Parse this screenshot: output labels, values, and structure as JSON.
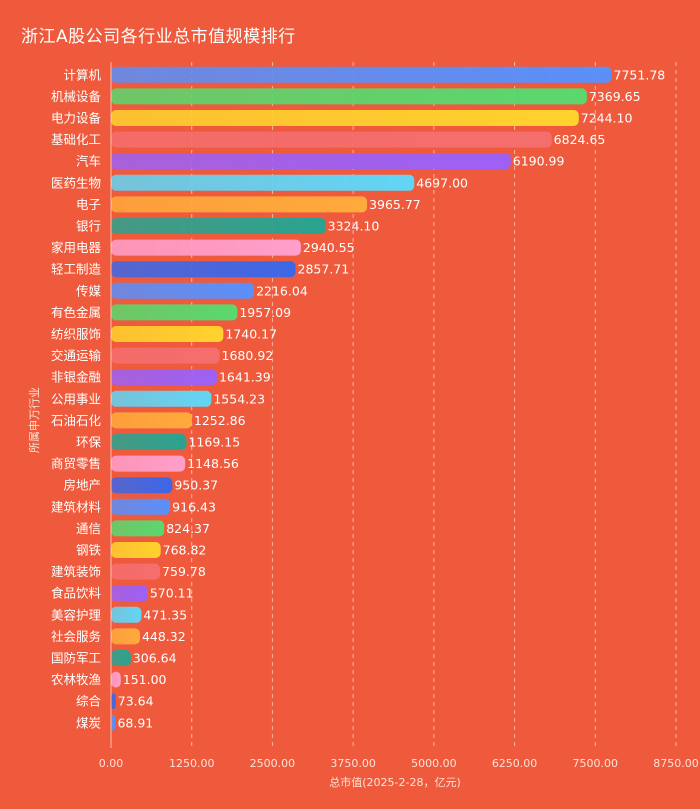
{
  "title": "浙江A股公司各行业总市值规模排行",
  "chart_data": {
    "type": "bar",
    "orientation": "horizontal",
    "title": "浙江A股公司各行业总市值规模排行",
    "xlabel": "总市值(2025-2-28，亿元)",
    "ylabel": "所属申万行业",
    "xlim": [
      0,
      8750
    ],
    "xticks": [
      "0.00",
      "1250.00",
      "2500.00",
      "3750.00",
      "5000.00",
      "6250.00",
      "7500.00",
      "8750.00"
    ],
    "grid": "vertical dashed",
    "categories": [
      "计算机",
      "机械设备",
      "电力设备",
      "基础化工",
      "汽车",
      "医药生物",
      "电子",
      "银行",
      "家用电器",
      "轻工制造",
      "传媒",
      "有色金属",
      "纺织服饰",
      "交通运输",
      "非银金融",
      "公用事业",
      "石油石化",
      "环保",
      "商贸零售",
      "房地产",
      "建筑材料",
      "通信",
      "钢铁",
      "建筑装饰",
      "食品饮料",
      "美容护理",
      "社会服务",
      "国防军工",
      "农林牧渔",
      "综合",
      "煤炭"
    ],
    "values": [
      7751.78,
      7369.65,
      7244.1,
      6824.65,
      6190.99,
      4697.0,
      3965.77,
      3324.1,
      2940.55,
      2857.71,
      2216.04,
      1957.09,
      1740.17,
      1680.92,
      1641.39,
      1554.23,
      1252.86,
      1169.15,
      1148.56,
      950.37,
      916.43,
      824.37,
      768.82,
      759.78,
      570.11,
      471.35,
      448.32,
      306.64,
      151.0,
      73.64,
      68.91
    ],
    "labels": [
      "7751.78",
      "7369.65",
      "7244.10",
      "6824.65",
      "6190.99",
      "4697.00",
      "3965.77",
      "3324.10",
      "2940.55",
      "2857.71",
      "2216.04",
      "1957.09",
      "1740.17",
      "1680.92",
      "1641.39",
      "1554.23",
      "1252.86",
      "1169.15",
      "1148.56",
      "950.37",
      "916.43",
      "824.37",
      "768.82",
      "759.78",
      "570.11",
      "471.35",
      "448.32",
      "306.64",
      "151.00",
      "73.64",
      "68.91"
    ],
    "colors": [
      "#5b8ff9",
      "#5ad86e",
      "#ffd22e",
      "#f56e6e",
      "#9d61f5",
      "#62d5f5",
      "#ffaa3c",
      "#2aa38f",
      "#ff9fcb",
      "#3d67e6"
    ]
  }
}
